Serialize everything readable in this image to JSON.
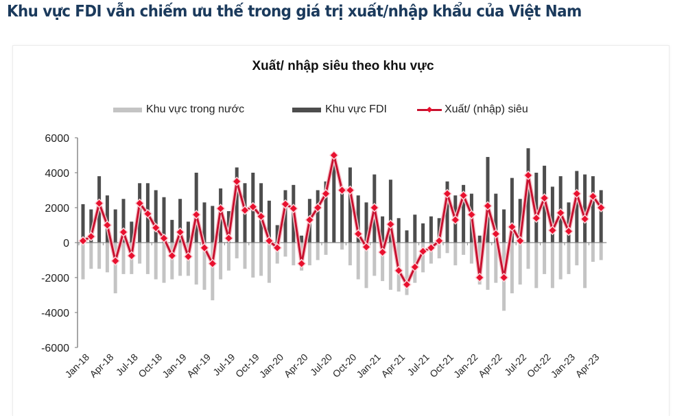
{
  "page": {
    "title": "Khu vực FDI vẫn chiếm ưu thế trong giá trị xuất/nhập khẩu của Việt Nam"
  },
  "legend": {
    "domestic": "Khu vực trong nước",
    "fdi": "Khu vực FDI",
    "balance": "Xuất/ (nhập) siêu"
  },
  "colors": {
    "domestic": "#c4c4c4",
    "fdi": "#4d4d4d",
    "balance_line": "#c8102e",
    "balance_marker": "#e8102e",
    "title": "#1b3a5c"
  },
  "chart_data": {
    "type": "bar",
    "title": "Xuất/ nhập siêu theo khu vực",
    "xlabel": "",
    "ylabel": "",
    "ylim": [
      -6000,
      6000
    ],
    "yticks": [
      6000,
      4000,
      2000,
      0,
      -2000,
      -4000,
      -6000
    ],
    "grid": false,
    "legend_position": "top",
    "x_tick_labels": [
      "Jan-18",
      "Apr-18",
      "Jul-18",
      "Oct-18",
      "Jan-19",
      "Apr-19",
      "Jul-19",
      "Oct-19",
      "Jan-20",
      "Apr-20",
      "Jul-20",
      "Oct-20",
      "Jan-21",
      "Apr-21",
      "Jul-21",
      "Oct-21",
      "Jan-22",
      "Apr-22",
      "Jul-22",
      "Oct-22",
      "Jan-23",
      "Apr-23"
    ],
    "categories": [
      "Jan-18",
      "Feb-18",
      "Mar-18",
      "Apr-18",
      "May-18",
      "Jun-18",
      "Jul-18",
      "Aug-18",
      "Sep-18",
      "Oct-18",
      "Nov-18",
      "Dec-18",
      "Jan-19",
      "Feb-19",
      "Mar-19",
      "Apr-19",
      "May-19",
      "Jun-19",
      "Jul-19",
      "Aug-19",
      "Sep-19",
      "Oct-19",
      "Nov-19",
      "Dec-19",
      "Jan-20",
      "Feb-20",
      "Mar-20",
      "Apr-20",
      "May-20",
      "Jun-20",
      "Jul-20",
      "Aug-20",
      "Sep-20",
      "Oct-20",
      "Nov-20",
      "Dec-20",
      "Jan-21",
      "Feb-21",
      "Mar-21",
      "Apr-21",
      "May-21",
      "Jun-21",
      "Jul-21",
      "Aug-21",
      "Sep-21",
      "Oct-21",
      "Nov-21",
      "Dec-21",
      "Jan-22",
      "Feb-22",
      "Mar-22",
      "Apr-22",
      "May-22",
      "Jun-22",
      "Jul-22",
      "Aug-22",
      "Sep-22",
      "Oct-22",
      "Nov-22",
      "Dec-22",
      "Jan-23",
      "Feb-23",
      "Mar-23",
      "Apr-23",
      "May-23"
    ],
    "series": [
      {
        "name": "Khu vực trong nước",
        "type": "bar",
        "values": [
          -2100,
          -1500,
          -1500,
          -1700,
          -2900,
          -1800,
          -1800,
          -1200,
          -1800,
          -2100,
          -2300,
          -2100,
          -1900,
          -1900,
          -2400,
          -2700,
          -3300,
          -2100,
          -1600,
          -900,
          -1500,
          -2000,
          -1900,
          -2300,
          -1200,
          -800,
          -1300,
          -1600,
          -1300,
          -1000,
          -700,
          0,
          -400,
          -1300,
          -2100,
          -2600,
          -1900,
          -2200,
          -2700,
          -2800,
          -3000,
          -2300,
          -1700,
          -1200,
          -900,
          -600,
          -1300,
          -700,
          -1200,
          -2400,
          -2700,
          -2300,
          -3900,
          -2900,
          -2400,
          -1500,
          -2600,
          -1800,
          -2600,
          -2100,
          -1800,
          -1300,
          -2600,
          -1100,
          -1000
        ]
      },
      {
        "name": "Khu vực FDI",
        "type": "bar",
        "values": [
          2200,
          1900,
          3800,
          2700,
          1900,
          2500,
          1200,
          3400,
          3400,
          3000,
          2600,
          1300,
          2500,
          1200,
          4000,
          2300,
          2100,
          3100,
          1800,
          4300,
          3400,
          4000,
          3400,
          2400,
          1000,
          3000,
          3300,
          400,
          2500,
          3000,
          3500,
          5000,
          3000,
          4300,
          2700,
          2300,
          3900,
          1500,
          3600,
          1400,
          700,
          1600,
          1100,
          1500,
          1400,
          3500,
          2700,
          3300,
          2800,
          400,
          4900,
          2800,
          1900,
          3700,
          2500,
          5400,
          4000,
          4400,
          3200,
          3800,
          2300,
          4100,
          3900,
          3800,
          3000
        ]
      },
      {
        "name": "Xuất/ (nhập) siêu",
        "type": "line",
        "values": [
          100,
          350,
          2250,
          1000,
          -1050,
          600,
          -750,
          2250,
          1650,
          850,
          250,
          -750,
          600,
          -800,
          1600,
          -300,
          -1200,
          1950,
          250,
          3500,
          1850,
          2050,
          1500,
          100,
          -300,
          2200,
          1950,
          -1200,
          1300,
          2000,
          2800,
          5000,
          3000,
          3000,
          500,
          -250,
          2000,
          -550,
          1050,
          -1600,
          -2400,
          -1400,
          -500,
          -300,
          100,
          2800,
          1300,
          2700,
          1600,
          -2000,
          2100,
          500,
          -2000,
          900,
          100,
          3850,
          1400,
          2550,
          700,
          1700,
          650,
          2800,
          1350,
          2650,
          2000
        ]
      }
    ]
  }
}
